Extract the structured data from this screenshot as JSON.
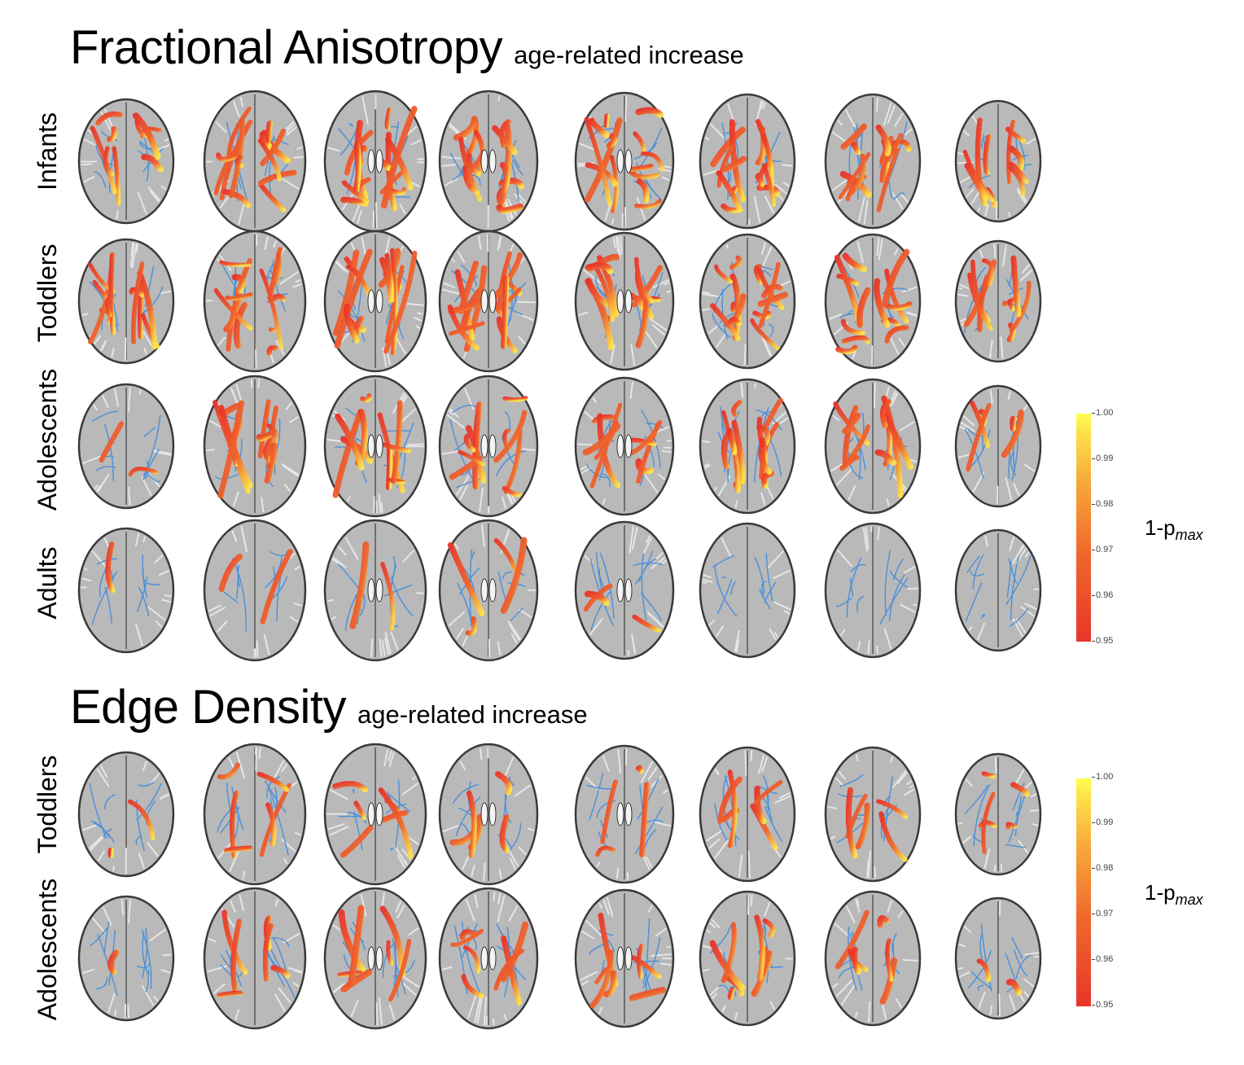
{
  "panels": [
    {
      "title": "Fractional Anisotropy",
      "subtitle": "age-related increase",
      "rows": [
        {
          "label": "Infants",
          "levels": [
            0.55,
            0.85,
            0.9,
            0.9,
            0.85,
            0.9,
            0.85,
            0.6
          ]
        },
        {
          "label": "Toddlers",
          "levels": [
            0.7,
            0.8,
            0.85,
            0.85,
            0.8,
            0.85,
            0.8,
            0.65
          ]
        },
        {
          "label": "Adolescents",
          "levels": [
            0.15,
            0.75,
            0.6,
            0.6,
            0.55,
            0.85,
            0.65,
            0.3
          ]
        },
        {
          "label": "Adults",
          "levels": [
            0.08,
            0.15,
            0.15,
            0.25,
            0.2,
            0.03,
            0.0,
            0.0
          ]
        }
      ],
      "colorbar": {
        "ticks": [
          "1.00",
          "0.99",
          "0.98",
          "0.97",
          "0.96",
          "0.95"
        ],
        "label": "1-p",
        "label_sub": "max"
      }
    },
    {
      "title": "Edge Density",
      "subtitle": "age-related increase",
      "rows": [
        {
          "label": "Toddlers",
          "levels": [
            0.1,
            0.35,
            0.4,
            0.3,
            0.25,
            0.35,
            0.3,
            0.3
          ]
        },
        {
          "label": "Adolescents",
          "levels": [
            0.08,
            0.35,
            0.45,
            0.45,
            0.45,
            0.5,
            0.4,
            0.15
          ]
        }
      ],
      "colorbar": {
        "ticks": [
          "1.00",
          "0.99",
          "0.98",
          "0.97",
          "0.96",
          "0.95"
        ],
        "label": "1-p",
        "label_sub": "max"
      }
    }
  ],
  "colors": {
    "brain": "#b9b9b9",
    "brain_edge": "#3a3a3a",
    "sulcus": "#e6e6e6",
    "tract_blue": "#4a8fd8",
    "sig_low": "#e8352a",
    "sig_high": "#fde24a"
  }
}
